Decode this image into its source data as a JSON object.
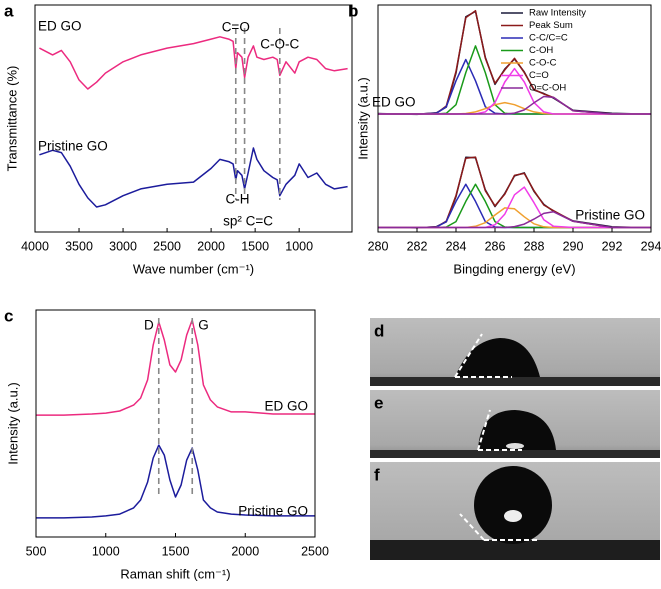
{
  "chart_data": [
    {
      "type": "line",
      "panel_label": "a",
      "x_label": "Wave number (cm⁻¹)",
      "y_label": "Transmittance (%)",
      "xlim": [
        4000,
        400
      ],
      "xticks": [
        4000,
        3500,
        3000,
        2500,
        2000,
        1500,
        1000
      ],
      "ylim": [
        0,
        100
      ],
      "x": [
        3950,
        3800,
        3700,
        3600,
        3500,
        3400,
        3300,
        3200,
        3000,
        2800,
        2500,
        2200,
        2000,
        1900,
        1800,
        1750,
        1720,
        1700,
        1650,
        1620,
        1580,
        1520,
        1480,
        1400,
        1300,
        1250,
        1220,
        1150,
        1050,
        1000,
        900,
        800,
        700,
        600,
        450
      ],
      "series": [
        {
          "color": "#ec2a7f",
          "values": [
            81,
            78,
            80,
            75,
            67,
            63,
            66,
            70,
            75,
            78,
            81,
            83,
            85,
            86,
            85,
            84,
            72,
            79,
            77,
            68,
            77,
            82,
            77,
            76,
            77,
            76,
            69,
            75,
            70,
            75,
            77,
            76,
            72,
            71,
            72
          ]
        },
        {
          "color": "#1c1c9c",
          "values": [
            34,
            36,
            35,
            29,
            21,
            15,
            11,
            12,
            16,
            19,
            21,
            22,
            28,
            32,
            31,
            30,
            23,
            27,
            25,
            19,
            26,
            37,
            32,
            27,
            24,
            23,
            16,
            21,
            25,
            30,
            24,
            26,
            21,
            19,
            20
          ]
        }
      ],
      "reference_x": [
        1720,
        1620,
        1220
      ],
      "annotations": [
        "ED GO",
        "Pristine GO",
        "C=O",
        "C-O-C",
        "C-H",
        "sp² C=C"
      ]
    },
    {
      "type": "line",
      "panel_label": "b",
      "x_label": "Bingding energy (eV)",
      "y_label": "Intensity (a.u.)",
      "xlim": [
        280,
        294
      ],
      "xticks": [
        280,
        282,
        284,
        286,
        288,
        290,
        292,
        294
      ],
      "ylim": [
        0,
        100
      ],
      "legend": "upper right",
      "x": [
        280,
        282,
        283,
        283.5,
        284,
        284.5,
        285,
        285.5,
        286,
        286.5,
        287,
        287.5,
        288,
        288.5,
        289,
        290,
        292,
        294
      ],
      "series": [
        {
          "name": "Raw Intensity",
          "color": "#1a1a3a",
          "values": [
            52.2,
            51.8,
            52.5,
            55,
            70,
            94.8,
            97.2,
            77,
            65,
            71.8,
            76.2,
            70.5,
            62.5,
            61,
            59,
            53.6,
            52.3,
            51.9
          ]
        },
        {
          "name": "Peak Sum",
          "color": "#8b1a1a",
          "values": [
            52,
            52,
            52.3,
            55.5,
            70.7,
            94.4,
            97.5,
            76.6,
            65.5,
            71.4,
            76.5,
            70.2,
            62.8,
            60.8,
            59.3,
            53.4,
            52,
            52
          ]
        },
        {
          "name": "C-C/C=C",
          "color": "#2b2bb5",
          "values": [
            52,
            52,
            52.3,
            55.2,
            66.6,
            76,
            66.6,
            55.2,
            52.3,
            52,
            52,
            52,
            52,
            52,
            52,
            52,
            52,
            52
          ]
        },
        {
          "name": "C-OH",
          "color": "#1a9a1a",
          "values": [
            52,
            52,
            52,
            52.3,
            56.1,
            70.2,
            82,
            70.2,
            56.1,
            52.3,
            52,
            52,
            52,
            52,
            52,
            52,
            52,
            52
          ]
        },
        {
          "name": "C-O-C",
          "color": "#f0a030",
          "values": [
            52,
            52,
            52,
            52,
            52,
            52.2,
            52.9,
            54.3,
            56.1,
            57,
            56.1,
            54.3,
            52.9,
            52.2,
            52,
            52,
            52,
            52
          ]
        },
        {
          "name": "C=O",
          "color": "#f03ce8",
          "values": [
            52,
            52,
            52,
            52,
            52,
            52,
            52,
            52.9,
            57,
            66.1,
            72,
            66.1,
            57,
            52.9,
            52,
            52,
            52,
            52
          ]
        },
        {
          "name": "O=C-OH",
          "color": "#8a2a9a",
          "values": [
            52,
            52,
            52,
            52,
            52,
            52,
            52,
            52,
            52,
            52,
            52.4,
            53.8,
            56.9,
            59.7,
            59.3,
            53.4,
            52,
            52
          ]
        },
        {
          "color": "#1a1a3a",
          "values": [
            2.1,
            1.8,
            2.4,
            4.5,
            15.6,
            32.9,
            32.7,
            18.6,
            11.2,
            17,
            24.7,
            26.1,
            17.9,
            12.2,
            9.1,
            4.9,
            2.3,
            1.9
          ]
        },
        {
          "color": "#8b1a1a",
          "values": [
            2,
            2,
            2.2,
            4.8,
            16.1,
            32.5,
            33,
            18.2,
            11.5,
            16.7,
            25,
            25.8,
            18.2,
            11.9,
            9.4,
            4.7,
            2,
            2
          ]
        },
        {
          "color": "#2b2bb5",
          "values": [
            2,
            2,
            2.2,
            4.6,
            13.5,
            21,
            13.5,
            4.6,
            2.2,
            2,
            2,
            2,
            2,
            2,
            2,
            2,
            2,
            2
          ]
        },
        {
          "color": "#1a9a1a",
          "values": [
            2,
            2,
            2,
            2.2,
            4.6,
            13.5,
            21,
            13.5,
            4.6,
            2.2,
            2,
            2,
            2,
            2,
            2,
            2,
            2,
            2
          ]
        },
        {
          "color": "#f0a030",
          "values": [
            2,
            2,
            2,
            2,
            2,
            2,
            2.5,
            4.1,
            7.5,
            10.6,
            10.2,
            6.7,
            3.6,
            2.3,
            2,
            2,
            2,
            2
          ]
        },
        {
          "color": "#f03ce8",
          "values": [
            2,
            2,
            2,
            2,
            2,
            2,
            2,
            2,
            3.2,
            7.9,
            16.4,
            19.8,
            12.9,
            5.4,
            2.5,
            2,
            2,
            2
          ]
        },
        {
          "color": "#8a2a9a",
          "values": [
            2,
            2,
            2,
            2,
            2,
            2,
            2,
            2,
            2,
            2,
            2.4,
            3.5,
            5.7,
            8.2,
            8.9,
            4.7,
            2,
            2
          ]
        }
      ],
      "annotations": [
        "ED GO",
        "Pristine GO"
      ]
    },
    {
      "type": "line",
      "panel_label": "c",
      "x_label": "Raman shift (cm⁻¹)",
      "y_label": "Intensity (a.u.)",
      "xlim": [
        500,
        2500
      ],
      "xticks": [
        500,
        1000,
        1500,
        2000,
        2500
      ],
      "ylim": [
        0,
        100
      ],
      "x": [
        500,
        700,
        900,
        1000,
        1100,
        1200,
        1250,
        1300,
        1340,
        1380,
        1420,
        1460,
        1500,
        1540,
        1580,
        1620,
        1660,
        1700,
        1750,
        1800,
        1900,
        2000,
        2200,
        2500
      ],
      "series": [
        {
          "color": "#ec2a7f",
          "values": [
            53.7,
            53.7,
            54.2,
            54.6,
            55.5,
            58.1,
            61.2,
            69.2,
            84.6,
            94.7,
            86.8,
            75.8,
            72.7,
            78,
            89,
            95.6,
            84.6,
            67,
            60.4,
            57.3,
            55.1,
            55.1,
            54.2,
            54.2
          ]
        },
        {
          "color": "#1c1c9c",
          "values": [
            8.4,
            8.4,
            8.8,
            9.3,
            10.1,
            12.8,
            16.3,
            24.2,
            34.8,
            40.5,
            36.1,
            25.1,
            17.6,
            22.9,
            33.9,
            39.2,
            29.5,
            16.3,
            12.8,
            11,
            10.1,
            9.7,
            9.3,
            9.3
          ]
        }
      ],
      "reference_x": [
        1380,
        1620
      ],
      "annotations": [
        "D",
        "G",
        "ED GO",
        "Pristine GO"
      ]
    }
  ],
  "photos": {
    "labels": [
      "d",
      "e",
      "f"
    ]
  }
}
